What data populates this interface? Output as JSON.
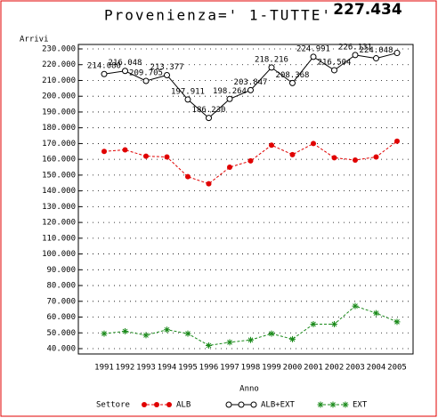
{
  "chart_data": {
    "type": "line",
    "title": "Provenienza=' 1-TUTTE'",
    "y_label": "Arrivi",
    "x_label": "Anno",
    "legend_title": "Settore",
    "categories": [
      "1991",
      "1992",
      "1993",
      "1994",
      "1995",
      "1996",
      "1997",
      "1998",
      "1999",
      "2000",
      "2001",
      "2002",
      "2003",
      "2004",
      "2005"
    ],
    "series": [
      {
        "name": "ALB",
        "color": "#e00000",
        "marker": "dot",
        "dashed": true,
        "values": [
          165000,
          166000,
          162000,
          161500,
          149000,
          144500,
          155000,
          159000,
          169000,
          163000,
          170000,
          161000,
          159500,
          161500,
          171500
        ]
      },
      {
        "name": "ALB+EXT",
        "color": "#000000",
        "marker": "circle",
        "dashed": false,
        "values": [
          214080,
          216048,
          209705,
          213377,
          197911,
          186230,
          198264,
          203847,
          218216,
          208368,
          224991,
          216504,
          226131,
          224048,
          227434
        ],
        "value_labels": [
          "214.080",
          "216.048",
          "209.705",
          "213.377",
          "197.911",
          "186.230",
          "198.264",
          "203.847",
          "218.216",
          "208.368",
          "224.991",
          "216.504",
          "226.131",
          "224.048",
          "227.434"
        ]
      },
      {
        "name": "EXT",
        "color": "#1a8a1a",
        "marker": "star",
        "dashed": true,
        "values": [
          49500,
          51000,
          48500,
          52000,
          49500,
          42000,
          44000,
          45500,
          49500,
          46000,
          55500,
          55500,
          67000,
          62500,
          57000
        ]
      }
    ],
    "ylim": [
      40000,
      230000
    ],
    "yticks": [
      {
        "value": 40000,
        "label": "40.000"
      },
      {
        "value": 50000,
        "label": "50.000"
      },
      {
        "value": 60000,
        "label": "60.000"
      },
      {
        "value": 70000,
        "label": "70.000"
      },
      {
        "value": 80000,
        "label": "80.000"
      },
      {
        "value": 90000,
        "label": "90.000"
      },
      {
        "value": 100000,
        "label": "100.000"
      },
      {
        "value": 110000,
        "label": "110.000"
      },
      {
        "value": 120000,
        "label": "120.000"
      },
      {
        "value": 130000,
        "label": "130.000"
      },
      {
        "value": 140000,
        "label": "140.000"
      },
      {
        "value": 150000,
        "label": "150.000"
      },
      {
        "value": 160000,
        "label": "160.000"
      },
      {
        "value": 170000,
        "label": "170.000"
      },
      {
        "value": 180000,
        "label": "180.000"
      },
      {
        "value": 190000,
        "label": "190.000"
      },
      {
        "value": 200000,
        "label": "200.000"
      },
      {
        "value": 210000,
        "label": "210.000"
      },
      {
        "value": 220000,
        "label": "220.000"
      },
      {
        "value": 230000,
        "label": "230.000"
      }
    ],
    "grid": true
  }
}
